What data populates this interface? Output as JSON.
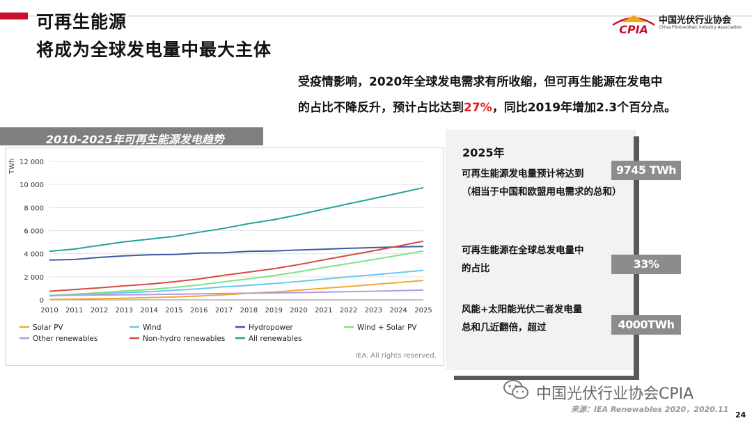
{
  "header": {
    "title_line1": "可再生能源",
    "title_line2": "将成为全球发电量中最大主体"
  },
  "logo": {
    "mark": "CPIA",
    "name_cn": "中国光伏行业协会",
    "name_en": "China Photovoltaic Industry Association"
  },
  "summary": {
    "line1": "受疫情影响，2020年全球发电需求有所收缩，但可再生能源在发电中",
    "line2_before": "的占比不降反升，预计占比达到",
    "line2_highlight": "27%",
    "line2_after": "，同比2019年增加2.3个百分点。"
  },
  "chart_banner": "2010-2025年可再生能源发电趋势",
  "chart_data": {
    "type": "line",
    "ylabel": "TWh",
    "ylim": [
      0,
      12000
    ],
    "yticks": [
      "0",
      "2 000",
      "4 000",
      "6 000",
      "8 000",
      "10 000",
      "12 000"
    ],
    "x": [
      "2010",
      "2011",
      "2012",
      "2013",
      "2014",
      "2015",
      "2016",
      "2017",
      "2018",
      "2019",
      "2020",
      "2021",
      "2022",
      "2023",
      "2024",
      "2025"
    ],
    "grid": true,
    "legend_position": "bottom",
    "series": [
      {
        "name": "Solar PV",
        "color": "#f0a830",
        "values": [
          30,
          60,
          100,
          140,
          190,
          250,
          330,
          440,
          570,
          680,
          840,
          1000,
          1160,
          1330,
          1500,
          1680
        ]
      },
      {
        "name": "Wind",
        "color": "#66c8f0",
        "values": [
          340,
          440,
          520,
          630,
          710,
          830,
          960,
          1130,
          1260,
          1420,
          1590,
          1800,
          1990,
          2170,
          2360,
          2560
        ]
      },
      {
        "name": "Hydropower",
        "color": "#3a5aa8",
        "values": [
          3450,
          3500,
          3680,
          3820,
          3900,
          3930,
          4050,
          4080,
          4200,
          4240,
          4320,
          4390,
          4470,
          4530,
          4590,
          4630
        ]
      },
      {
        "name": "Wind + Solar PV",
        "color": "#80e08a",
        "values": [
          370,
          500,
          620,
          770,
          900,
          1080,
          1290,
          1570,
          1830,
          2100,
          2430,
          2800,
          3150,
          3500,
          3860,
          4240
        ]
      },
      {
        "name": "Other renewables",
        "color": "#b49ae0",
        "values": [
          380,
          400,
          420,
          440,
          460,
          490,
          520,
          550,
          580,
          600,
          630,
          670,
          710,
          750,
          800,
          850
        ]
      },
      {
        "name": "Non-hydro renewables",
        "color": "#d84a3a",
        "values": [
          750,
          900,
          1040,
          1210,
          1360,
          1570,
          1810,
          2120,
          2410,
          2700,
          3060,
          3470,
          3860,
          4250,
          4660,
          5090
        ]
      },
      {
        "name": "All renewables",
        "color": "#21a39a",
        "values": [
          4200,
          4400,
          4720,
          5030,
          5260,
          5500,
          5860,
          6200,
          6610,
          6940,
          7380,
          7860,
          8330,
          8780,
          9250,
          9720
        ]
      }
    ],
    "source_note": "IEA. All rights reserved."
  },
  "panel": {
    "year": "2025年",
    "p1": "可再生能源发电量预计将达到",
    "p2": "（相当于中国和欧盟用电需求的总和）",
    "tag1": "9745 TWh",
    "p3": "可再生能源在全球总发电量中",
    "p4": "的占比",
    "tag2": "33%",
    "p5": "风能+太阳能光伏二者发电量",
    "p6": "总和几近翻倍，超过",
    "tag3": "4000TWh"
  },
  "footer": {
    "wechat": "中国光伏行业协会CPIA",
    "source": "来源：IEA Renewables 2020，2020.11",
    "page": "24"
  }
}
